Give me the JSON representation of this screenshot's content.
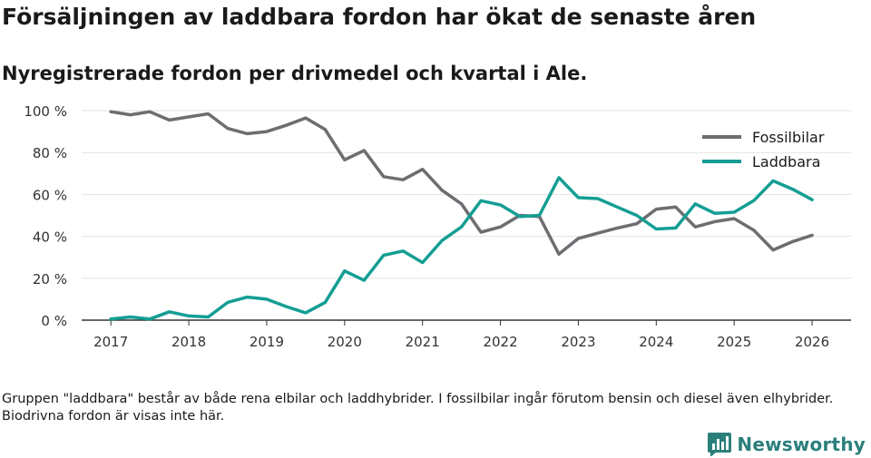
{
  "title": "Försäljningen av laddbara fordon har ökat de senaste åren",
  "subtitle": "Nyregistrerade fordon per drivmedel och kvartal i Ale.",
  "note": "Gruppen \"laddbara\" består av både rena elbilar och laddhybrider. I fossilbilar ingår förutom bensin och diesel även elhybrider. Biodrivna fordon är visas inte här.",
  "brand": {
    "name": "Newsworthy"
  },
  "chart_data": {
    "type": "line",
    "title": "Försäljningen av laddbara fordon har ökat de senaste åren",
    "xlabel": "",
    "ylabel": "",
    "xlim": [
      2016.625,
      2026.5
    ],
    "ylim": [
      0,
      100
    ],
    "yticks": [
      0,
      20,
      40,
      60,
      80,
      100
    ],
    "ytick_labels": [
      "0 %",
      "20 %",
      "40 %",
      "60 %",
      "80 %",
      "100 %"
    ],
    "xticks": [
      2017,
      2018,
      2019,
      2020,
      2021,
      2022,
      2023,
      2024,
      2025,
      2026
    ],
    "xtick_labels": [
      "2017",
      "2018",
      "2019",
      "2020",
      "2021",
      "2022",
      "2023",
      "2024",
      "2025",
      "2026"
    ],
    "legend_position": "top-right",
    "x": [
      2017.0,
      2017.25,
      2017.5,
      2017.75,
      2018.0,
      2018.25,
      2018.5,
      2018.75,
      2019.0,
      2019.25,
      2019.5,
      2019.75,
      2020.0,
      2020.25,
      2020.5,
      2020.75,
      2021.0,
      2021.25,
      2021.5,
      2021.75,
      2022.0,
      2022.25,
      2022.5,
      2022.75,
      2023.0,
      2023.25,
      2023.5,
      2023.75,
      2024.0,
      2024.25,
      2024.5,
      2024.75,
      2025.0,
      2025.25,
      2025.5,
      2025.75,
      2026.0
    ],
    "series": [
      {
        "name": "Fossilbilar",
        "color": "#6d6d72",
        "values": [
          99.5,
          98,
          99.5,
          95.5,
          97,
          98.5,
          91.5,
          89,
          90,
          93,
          96.5,
          91,
          76.5,
          81,
          68.5,
          67,
          72,
          62,
          55.5,
          42,
          44.5,
          50,
          49.5,
          31.5,
          39,
          41.5,
          44,
          46,
          53,
          54,
          44.5,
          47,
          48.5,
          43,
          33.5,
          37.5,
          40.5
        ]
      },
      {
        "name": "Laddbara",
        "color": "#149e94",
        "values": [
          0.5,
          1.5,
          0.5,
          4,
          2,
          1.5,
          8.5,
          11,
          10,
          6.5,
          3.5,
          8.5,
          23.5,
          19,
          31,
          33,
          27.5,
          38,
          44.5,
          57,
          55,
          49.5,
          50,
          68,
          58.5,
          58,
          54,
          50,
          43.5,
          44,
          55.5,
          51,
          51.5,
          57,
          66.5,
          62.5,
          57.5
        ]
      }
    ]
  }
}
